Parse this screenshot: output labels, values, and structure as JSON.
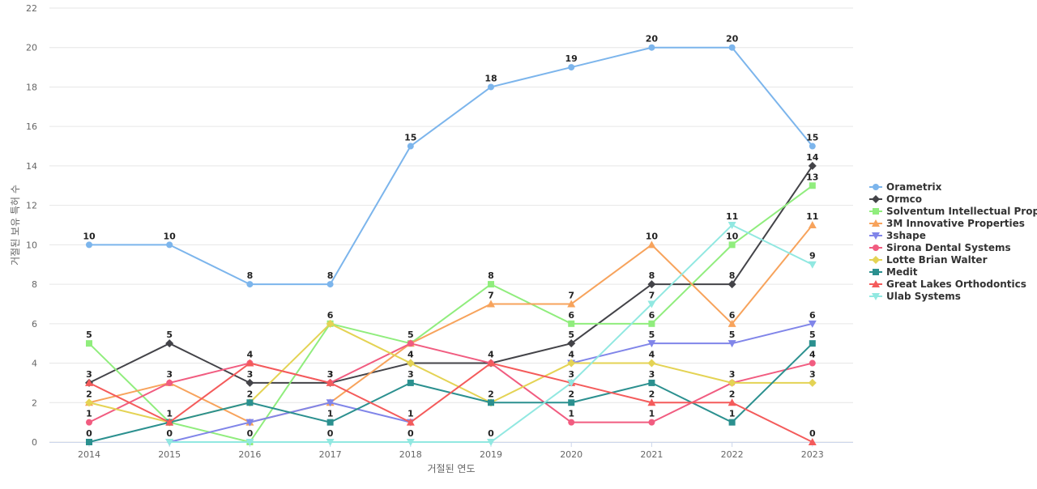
{
  "chart_data": {
    "type": "line",
    "xlabel": "거절된 연도",
    "ylabel": "거절된 보유 특허 수",
    "x": [
      "2014",
      "2015",
      "2016",
      "2017",
      "2018",
      "2019",
      "2020",
      "2021",
      "2022",
      "2023"
    ],
    "ylim": [
      0,
      22
    ],
    "yticks": [
      0,
      2,
      4,
      6,
      8,
      10,
      12,
      14,
      16,
      18,
      20,
      22
    ],
    "grid": true,
    "legend_position": "right",
    "series": [
      {
        "name": "Orametrix",
        "color": "#7cb5ec",
        "marker": "circle",
        "values": [
          10,
          10,
          8,
          8,
          15,
          18,
          19,
          20,
          20,
          15
        ]
      },
      {
        "name": "Ormco",
        "color": "#434348",
        "marker": "diamond",
        "values": [
          3,
          5,
          3,
          3,
          4,
          4,
          5,
          8,
          8,
          14
        ]
      },
      {
        "name": "Solventum Intellectual Prop...",
        "color": "#90ed7d",
        "marker": "square",
        "values": [
          5,
          1,
          0,
          6,
          5,
          8,
          6,
          6,
          10,
          13
        ]
      },
      {
        "name": "3M Innovative Properties",
        "color": "#f7a35c",
        "marker": "triangle",
        "values": [
          2,
          3,
          1,
          2,
          5,
          7,
          7,
          10,
          6,
          11
        ]
      },
      {
        "name": "3shape",
        "color": "#8085e9",
        "marker": "triangle-down",
        "values": [
          null,
          0,
          1,
          2,
          1,
          null,
          4,
          5,
          5,
          6
        ]
      },
      {
        "name": "Sirona Dental Systems",
        "color": "#f15c80",
        "marker": "circle",
        "values": [
          1,
          3,
          4,
          3,
          5,
          4,
          1,
          1,
          3,
          4
        ]
      },
      {
        "name": "Lotte Brian Walter",
        "color": "#e4d354",
        "marker": "diamond",
        "values": [
          2,
          1,
          2,
          6,
          4,
          2,
          4,
          4,
          3,
          3
        ]
      },
      {
        "name": "Medit",
        "color": "#2b908f",
        "marker": "square",
        "values": [
          0,
          1,
          2,
          1,
          3,
          2,
          2,
          3,
          1,
          5
        ]
      },
      {
        "name": "Great Lakes Orthodontics",
        "color": "#f45b5b",
        "marker": "triangle",
        "values": [
          3,
          1,
          4,
          3,
          1,
          4,
          3,
          2,
          2,
          0
        ]
      },
      {
        "name": "Ulab Systems",
        "color": "#91e8e1",
        "marker": "triangle-down",
        "values": [
          null,
          0,
          0,
          0,
          0,
          0,
          3,
          7,
          11,
          9
        ]
      }
    ],
    "data_labels": [
      {
        "series": 0,
        "i": 0,
        "text": "10"
      },
      {
        "series": 0,
        "i": 1,
        "text": "10"
      },
      {
        "series": 0,
        "i": 2,
        "text": "8"
      },
      {
        "series": 0,
        "i": 3,
        "text": "8"
      },
      {
        "series": 0,
        "i": 4,
        "text": "15"
      },
      {
        "series": 0,
        "i": 5,
        "text": "18"
      },
      {
        "series": 0,
        "i": 6,
        "text": "19"
      },
      {
        "series": 0,
        "i": 7,
        "text": "20"
      },
      {
        "series": 0,
        "i": 8,
        "text": "20"
      },
      {
        "series": 0,
        "i": 9,
        "text": "15"
      },
      {
        "series": 1,
        "i": 0,
        "text": "3"
      },
      {
        "series": 1,
        "i": 1,
        "text": "5"
      },
      {
        "series": 1,
        "i": 2,
        "text": "3"
      },
      {
        "series": 1,
        "i": 3,
        "text": "3"
      },
      {
        "series": 1,
        "i": 4,
        "text": "4"
      },
      {
        "series": 1,
        "i": 5,
        "text": "4"
      },
      {
        "series": 1,
        "i": 6,
        "text": "5"
      },
      {
        "series": 1,
        "i": 7,
        "text": "8"
      },
      {
        "series": 1,
        "i": 8,
        "text": "8"
      },
      {
        "series": 1,
        "i": 9,
        "text": "14"
      },
      {
        "series": 2,
        "i": 0,
        "text": "5"
      },
      {
        "series": 2,
        "i": 3,
        "text": "6"
      },
      {
        "series": 2,
        "i": 4,
        "text": "5"
      },
      {
        "series": 2,
        "i": 5,
        "text": "8"
      },
      {
        "series": 2,
        "i": 6,
        "text": "6"
      },
      {
        "series": 2,
        "i": 7,
        "text": "6"
      },
      {
        "series": 2,
        "i": 8,
        "text": "10"
      },
      {
        "series": 2,
        "i": 9,
        "text": "13"
      },
      {
        "series": 3,
        "i": 1,
        "text": "3"
      },
      {
        "series": 3,
        "i": 5,
        "text": "7"
      },
      {
        "series": 3,
        "i": 6,
        "text": "7"
      },
      {
        "series": 3,
        "i": 7,
        "text": "10"
      },
      {
        "series": 3,
        "i": 8,
        "text": "6"
      },
      {
        "series": 3,
        "i": 9,
        "text": "11"
      },
      {
        "series": 4,
        "i": 6,
        "text": "4"
      },
      {
        "series": 4,
        "i": 7,
        "text": "5"
      },
      {
        "series": 4,
        "i": 8,
        "text": "5"
      },
      {
        "series": 4,
        "i": 9,
        "text": "6"
      },
      {
        "series": 5,
        "i": 0,
        "text": "1"
      },
      {
        "series": 5,
        "i": 2,
        "text": "4"
      },
      {
        "series": 5,
        "i": 6,
        "text": "1"
      },
      {
        "series": 5,
        "i": 7,
        "text": "1"
      },
      {
        "series": 5,
        "i": 9,
        "text": "4"
      },
      {
        "series": 6,
        "i": 0,
        "text": "2"
      },
      {
        "series": 6,
        "i": 2,
        "text": "2"
      },
      {
        "series": 6,
        "i": 5,
        "text": "2"
      },
      {
        "series": 6,
        "i": 7,
        "text": "4"
      },
      {
        "series": 6,
        "i": 8,
        "text": "3"
      },
      {
        "series": 6,
        "i": 9,
        "text": "3"
      },
      {
        "series": 7,
        "i": 0,
        "text": "0"
      },
      {
        "series": 7,
        "i": 1,
        "text": "1"
      },
      {
        "series": 7,
        "i": 3,
        "text": "1"
      },
      {
        "series": 7,
        "i": 4,
        "text": "3"
      },
      {
        "series": 7,
        "i": 6,
        "text": "2"
      },
      {
        "series": 7,
        "i": 7,
        "text": "3"
      },
      {
        "series": 7,
        "i": 8,
        "text": "1"
      },
      {
        "series": 7,
        "i": 9,
        "text": "5"
      },
      {
        "series": 8,
        "i": 3,
        "text": "3"
      },
      {
        "series": 8,
        "i": 4,
        "text": "1"
      },
      {
        "series": 8,
        "i": 6,
        "text": "3"
      },
      {
        "series": 8,
        "i": 7,
        "text": "2"
      },
      {
        "series": 8,
        "i": 8,
        "text": "2"
      },
      {
        "series": 8,
        "i": 9,
        "text": "0"
      },
      {
        "series": 9,
        "i": 1,
        "text": "0"
      },
      {
        "series": 9,
        "i": 2,
        "text": "0"
      },
      {
        "series": 9,
        "i": 3,
        "text": "0"
      },
      {
        "series": 9,
        "i": 4,
        "text": "0"
      },
      {
        "series": 9,
        "i": 5,
        "text": "0"
      },
      {
        "series": 9,
        "i": 7,
        "text": "7"
      },
      {
        "series": 9,
        "i": 8,
        "text": "11"
      },
      {
        "series": 9,
        "i": 9,
        "text": "9"
      }
    ]
  }
}
